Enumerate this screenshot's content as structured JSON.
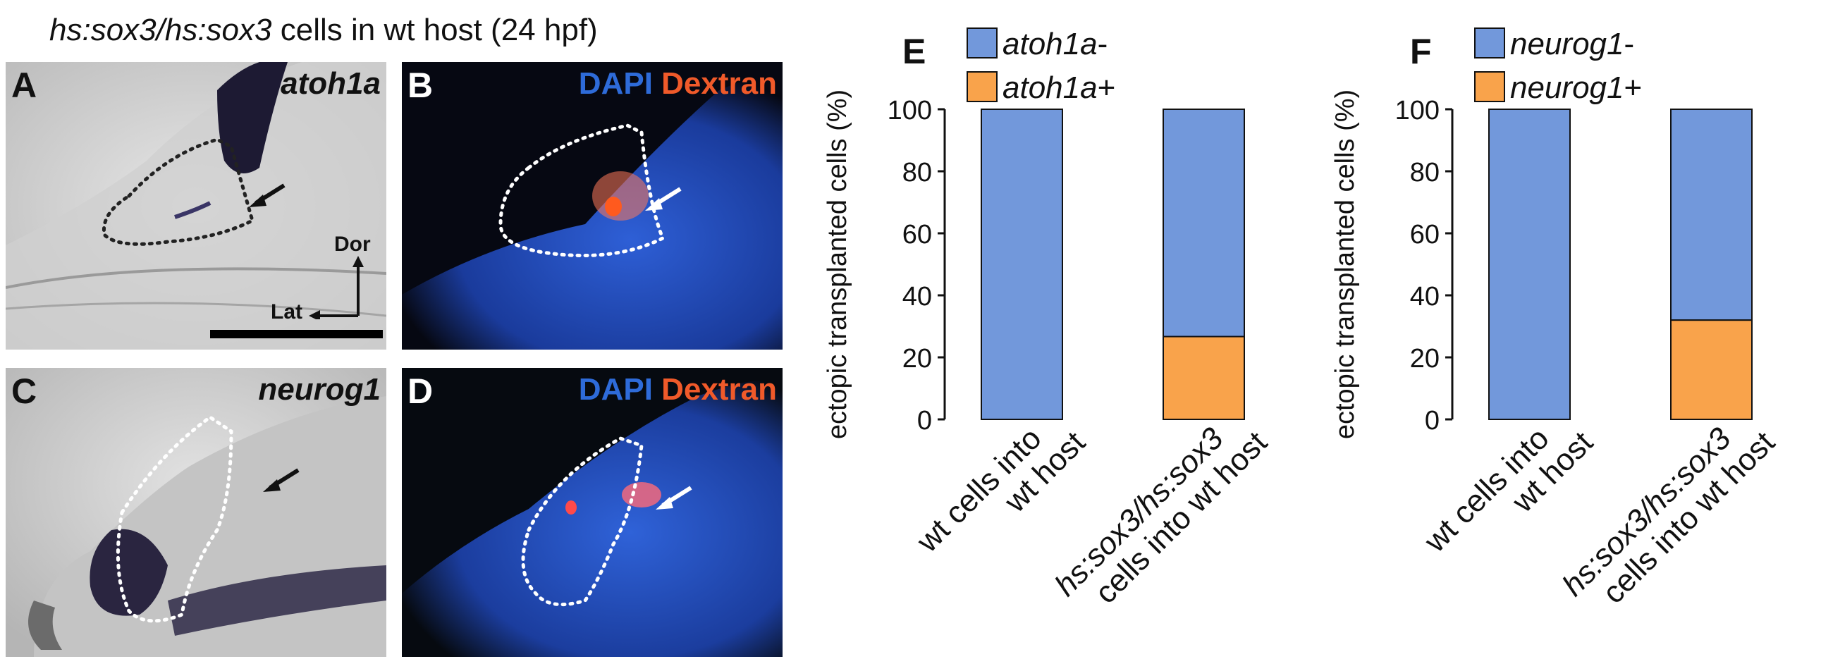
{
  "figure_title": {
    "genotype": "hs:sox3/hs:sox3",
    "rest": " cells in wt host (24 hpf)"
  },
  "panels": {
    "A": {
      "label": "A",
      "gene": "atoh1a",
      "axis_dorsal": "Dor",
      "axis_lateral": "Lat"
    },
    "B": {
      "label": "B",
      "stain1": "DAPI",
      "stain2": "Dextran"
    },
    "C": {
      "label": "C",
      "gene": "neurog1"
    },
    "D": {
      "label": "D",
      "stain1": "DAPI",
      "stain2": "Dextran"
    }
  },
  "colors": {
    "negative": "#7298DB",
    "positive": "#F9A34B",
    "dapi_text": "#2E6BD9",
    "dextran_text": "#F05A2A"
  },
  "chart_data": [
    {
      "panel": "E",
      "type": "bar",
      "stacked": true,
      "ylabel": "ectopic transplanted cells (%)",
      "ylim": [
        0,
        100
      ],
      "yticks": [
        0,
        20,
        40,
        60,
        80,
        100
      ],
      "categories": [
        {
          "line1": "wt cells into",
          "line2": "wt host"
        },
        {
          "line1": "hs:sox3/hs:sox3",
          "line2": "cells into wt host"
        }
      ],
      "series": [
        {
          "name": "atoh1a+",
          "values": [
            0,
            26.7
          ]
        },
        {
          "name": "atoh1a-",
          "values": [
            100,
            73.3
          ]
        }
      ],
      "legend": [
        "atoh1a-",
        "atoh1a+"
      ]
    },
    {
      "panel": "F",
      "type": "bar",
      "stacked": true,
      "ylabel": "ectopic transplanted cells (%)",
      "ylim": [
        0,
        100
      ],
      "yticks": [
        0,
        20,
        40,
        60,
        80,
        100
      ],
      "categories": [
        {
          "line1": "wt cells into",
          "line2": "wt host"
        },
        {
          "line1": "hs:sox3/hs:sox3",
          "line2": "cells into wt host"
        }
      ],
      "series": [
        {
          "name": "neurog1+",
          "values": [
            0,
            32
          ]
        },
        {
          "name": "neurog1-",
          "values": [
            100,
            68
          ]
        }
      ],
      "legend": [
        "neurog1-",
        "neurog1+"
      ]
    }
  ]
}
